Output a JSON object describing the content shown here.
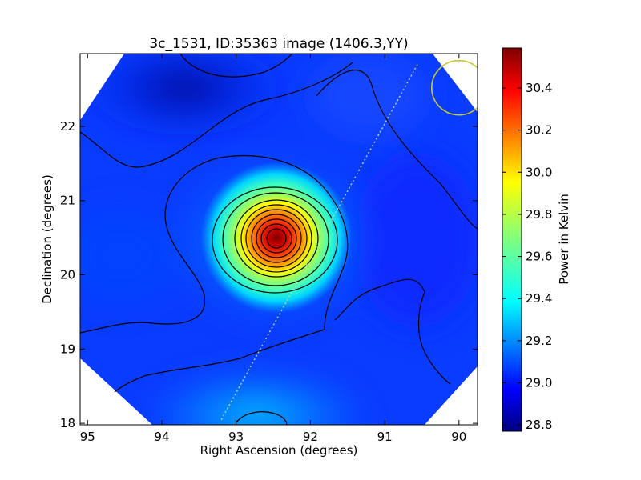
{
  "chart_data": {
    "type": "heatmap",
    "title": "3c_1531, ID:35363 image (1406.3,YY)",
    "xlabel": "Right Ascension (degrees)",
    "ylabel": "Declination (degrees)",
    "xlim": [
      95.1,
      89.75
    ],
    "ylim": [
      17.98,
      22.98
    ],
    "x_ticks": [
      95,
      94,
      93,
      92,
      91,
      90
    ],
    "y_ticks": [
      18,
      19,
      20,
      21,
      22
    ],
    "colorbar": {
      "label": "Power in Kelvin",
      "min": 28.77,
      "max": 30.59,
      "ticks": [
        28.8,
        29.0,
        29.2,
        29.4,
        29.6,
        29.8,
        30.0,
        30.2,
        30.4
      ],
      "colormap": "jet"
    },
    "peak": {
      "ra": 92.43,
      "dec": 20.5,
      "value": 30.59
    },
    "background_level": 29.1,
    "contours": "black",
    "circle_marker": {
      "ra": 90.0,
      "dec": 22.52,
      "color": "#c8c832"
    },
    "track_line": {
      "from": [
        93.2,
        18.05
      ],
      "to": [
        90.55,
        22.85
      ],
      "color": "#b4d8b4",
      "style": "dotted"
    }
  }
}
